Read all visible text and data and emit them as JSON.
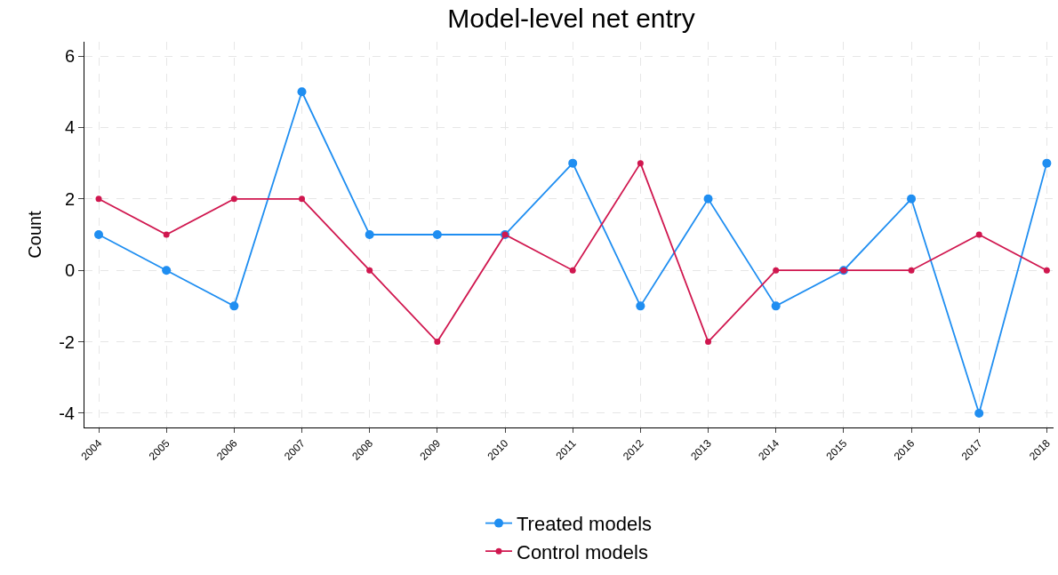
{
  "chart_data": {
    "type": "line",
    "title": "Model-level net entry",
    "ylabel": "Count",
    "x": [
      2004,
      2005,
      2006,
      2007,
      2008,
      2009,
      2010,
      2011,
      2012,
      2013,
      2014,
      2015,
      2016,
      2017,
      2018
    ],
    "series": [
      {
        "name": "Treated models",
        "color": "#1f8ef1",
        "values": [
          1,
          0,
          -1,
          5,
          1,
          1,
          1,
          3,
          -1,
          2,
          -1,
          0,
          2,
          -4,
          3
        ]
      },
      {
        "name": "Control models",
        "color": "#d0174f",
        "values": [
          2,
          1,
          2,
          2,
          0,
          -2,
          1,
          0,
          3,
          -2,
          0,
          0,
          0,
          1,
          0
        ]
      }
    ],
    "xlim": [
      2003.79,
      2018.1
    ],
    "xticks": [
      2004,
      2005,
      2006,
      2007,
      2008,
      2009,
      2010,
      2011,
      2012,
      2013,
      2014,
      2015,
      2016,
      2017,
      2018
    ],
    "ylim": [
      -4.4,
      6.4
    ],
    "yticks": [
      -4,
      -2,
      0,
      2,
      4,
      6
    ],
    "grid": true,
    "legend": "bottom",
    "marker": "circle",
    "line_style": "solid"
  }
}
